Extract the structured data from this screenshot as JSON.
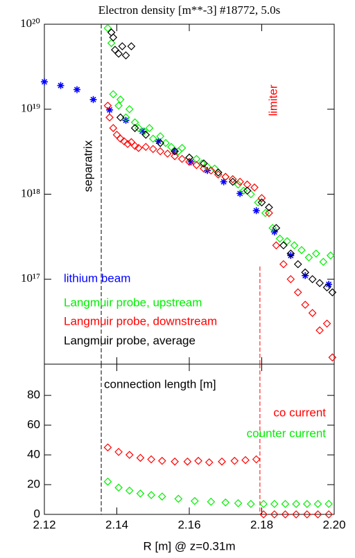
{
  "chart_data": [
    {
      "type": "scatter",
      "title": "Electron density [m**-3] #18772, 5.0s",
      "xlim": [
        2.12,
        2.2
      ],
      "ylim": [
        1e+16,
        1e+20
      ],
      "log_y": true,
      "yticks": [
        {
          "value": 1e+17,
          "label": "10¹⁷"
        },
        {
          "value": 1e+18,
          "label": "10¹⁸"
        },
        {
          "value": 1e+19,
          "label": "10¹⁹"
        },
        {
          "value": 1e+20,
          "label": "10²⁰"
        }
      ],
      "legend_loc": "lower left",
      "vlines": [
        {
          "x": 2.1357,
          "label": "separatrix",
          "color": "#000000"
        },
        {
          "x": 2.1795,
          "label": "limiter",
          "color": "#ff0000"
        }
      ],
      "series": [
        {
          "name": "lithium beam",
          "color": "#0000ff",
          "marker": "asterisk",
          "x": [
            2.12,
            2.1245,
            2.129,
            2.1335,
            2.138,
            2.1425,
            2.147,
            2.1515,
            2.156,
            2.1605,
            2.165,
            2.1695,
            2.174,
            2.1785,
            2.1835,
            2.188,
            2.192,
            2.1985
          ],
          "values": [
            2.1e+19,
            1.9e+19,
            1.7e+19,
            1.3e+19,
            9.8e+18,
            7.4e+18,
            5.5e+18,
            4.2e+18,
            3.2e+18,
            2.4e+18,
            1.9e+18,
            1.4e+18,
            1.02e+18,
            6.4e+17,
            3.6e+17,
            1.9e+17,
            1.1e+17,
            8.7e+16
          ]
        },
        {
          "name": "Langmuir probe, upstream",
          "color": "#00ee00",
          "marker": "diamond",
          "x": [
            2.1375,
            2.1385,
            2.139,
            2.1405,
            2.141,
            2.1425,
            2.1435,
            2.145,
            2.146,
            2.1475,
            2.149,
            2.15,
            2.152,
            2.1535,
            2.155,
            2.157,
            2.158,
            2.16,
            2.162,
            2.1635,
            2.165,
            2.167,
            2.168,
            2.17,
            2.172,
            2.1735,
            2.175,
            2.177,
            2.179,
            2.181,
            2.183,
            2.185,
            2.187,
            2.189,
            2.191,
            2.193,
            2.195,
            2.197,
            2.199
          ],
          "values": [
            9e+19,
            6e+19,
            1.5e+19,
            1.1e+19,
            1.3e+19,
            8e+18,
            1e+19,
            7e+18,
            6e+18,
            5.5e+18,
            6e+18,
            4.5e+18,
            4.8e+18,
            4e+18,
            3.6e+18,
            3.2e+18,
            3.5e+18,
            2.7e+18,
            2.6e+18,
            2.3e+18,
            2.1e+18,
            2e+18,
            1.8e+18,
            1.6e+18,
            1.5e+18,
            1.3e+18,
            1.1e+18,
            1e+18,
            8e+17,
            6e+17,
            4e+17,
            3e+17,
            2.8e+17,
            2.5e+17,
            2.2e+17,
            1.8e+17,
            2e+17,
            1.6e+17,
            1.9e+17
          ]
        },
        {
          "name": "Langmuir probe, downstream",
          "color": "#ff0000",
          "marker": "diamond",
          "x": [
            2.1375,
            2.138,
            2.139,
            2.14,
            2.141,
            2.142,
            2.143,
            2.144,
            2.145,
            2.146,
            2.148,
            2.15,
            2.152,
            2.154,
            2.156,
            2.158,
            2.16,
            2.162,
            2.164,
            2.166,
            2.168,
            2.17,
            2.172,
            2.174,
            2.176,
            2.178,
            2.18,
            2.182,
            2.184,
            2.186,
            2.188,
            2.19,
            2.192,
            2.194,
            2.196,
            2.198,
            2.1995
          ],
          "values": [
            1.1e+19,
            8e+18,
            6e+18,
            5e+18,
            4.5e+18,
            4.2e+18,
            3.9e+18,
            4.1e+18,
            3.7e+18,
            3.5e+18,
            3.6e+18,
            3.4e+18,
            3.2e+18,
            3e+18,
            2.8e+18,
            2.6e+18,
            2.4e+18,
            2.2e+18,
            2e+18,
            1.9e+18,
            1.7e+18,
            1.6e+18,
            1.5e+18,
            1.4e+18,
            1.3e+18,
            1.2e+18,
            9e+17,
            6e+17,
            2.5e+17,
            1.5e+17,
            1e+17,
            7e+16,
            5e+16,
            4e+16,
            2.5e+16,
            3e+16,
            1.2e+16
          ]
        },
        {
          "name": "Langmuir probe, average",
          "color": "#000000",
          "marker": "diamond",
          "x": [
            2.1385,
            2.139,
            2.1395,
            2.1405,
            2.1415,
            2.1425,
            2.144,
            2.141,
            2.145,
            2.148,
            2.152,
            2.156,
            2.16,
            2.164,
            2.168,
            2.172,
            2.176,
            2.18,
            2.182,
            2.184,
            2.186,
            2.188,
            2.19,
            2.192,
            2.194,
            2.196,
            2.198,
            2.1995
          ],
          "values": [
            8e+19,
            7e+19,
            5e+19,
            4.5e+19,
            5.5e+19,
            4.3e+19,
            5.5e+19,
            8e+18,
            6e+18,
            5e+18,
            4e+18,
            3.2e+18,
            2.7e+18,
            2.3e+18,
            1.8e+18,
            1.4e+18,
            1.1e+18,
            8e+17,
            7e+17,
            4e+17,
            2.5e+17,
            2e+17,
            1.5e+17,
            1.2e+17,
            1e+17,
            9e+16,
            8e+16,
            7e+16
          ]
        }
      ]
    },
    {
      "type": "scatter",
      "annotation": "connection length [m]",
      "x_label": "R [m] @ z=0.31m",
      "xlim": [
        2.12,
        2.2
      ],
      "ylim": [
        0,
        101
      ],
      "xticks": [
        2.12,
        2.14,
        2.16,
        2.18,
        {
          "value": 2.2,
          "label": "2.20"
        }
      ],
      "yticks": [
        0,
        20,
        40,
        60,
        80
      ],
      "legend_loc": "right",
      "vlines": [
        {
          "x": 2.1357,
          "color": "#000000"
        },
        {
          "x": 2.1795,
          "color": "#ff0000"
        }
      ],
      "series": [
        {
          "name": "co current",
          "color": "#ff0000",
          "marker": "diamond",
          "x": [
            2.1375,
            2.1405,
            2.1435,
            2.1465,
            2.1495,
            2.1525,
            2.156,
            2.1595,
            2.1625,
            2.1655,
            2.169,
            2.1725,
            2.1755,
            2.1785,
            2.1805,
            2.1835,
            2.1865,
            2.1895,
            2.1925,
            2.1955,
            2.1985
          ],
          "values": [
            45,
            42,
            40,
            38,
            37,
            36,
            35.5,
            35.5,
            36,
            35,
            35.5,
            36,
            36.5,
            37,
            0,
            0,
            0,
            0,
            0,
            0,
            0
          ]
        },
        {
          "name": "counter current",
          "color": "#00ee00",
          "marker": "diamond",
          "x": [
            2.1375,
            2.1405,
            2.1435,
            2.1465,
            2.1495,
            2.1525,
            2.157,
            2.1615,
            2.166,
            2.17,
            2.1735,
            2.177,
            2.1805,
            2.1835,
            2.1865,
            2.1895,
            2.1925,
            2.1955,
            2.1985
          ],
          "values": [
            22,
            18,
            16,
            14,
            13,
            12,
            10.5,
            9,
            8.5,
            8,
            7.5,
            7,
            7,
            7,
            7,
            7,
            7,
            7,
            7
          ]
        }
      ]
    }
  ]
}
